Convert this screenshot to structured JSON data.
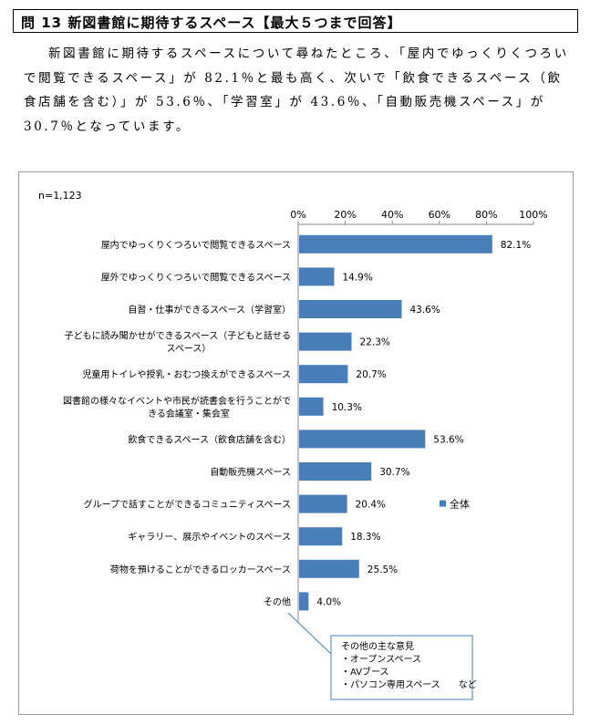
{
  "header": {
    "question_title": "問 13 新図書館に期待するスペース【最大５つまで回答】"
  },
  "intro": {
    "text": "新図書館に期待するスペースについて尋ねたところ、「屋内でゆっくりくつろいで閲覧できるスペース」が 82.1％と最も高く、次いで「飲食できるスペース（飲食店舗を含む）」が 53.6％、「学習室」が 43.6％、「自動販売機スペース」が 30.7％となっています。"
  },
  "colors": {
    "bar": "#4a7ebb",
    "axis": "#888888",
    "callout_border": "#4a7ebb"
  },
  "chart_data": {
    "type": "bar",
    "orientation": "horizontal",
    "sample_note": "n=1,123",
    "xlim": [
      0,
      100
    ],
    "x_ticks": [
      "0%",
      "20%",
      "40%",
      "60%",
      "80%",
      "100%"
    ],
    "categories": [
      [
        "屋内でゆっくりくつろいで閲覧できるスペース"
      ],
      [
        "屋外でゆっくりくつろいで閲覧できるスペース"
      ],
      [
        "自習・仕事ができるスペース（学習室）"
      ],
      [
        "子どもに読み聞かせができるスペース（子どもと話せる",
        "スペース）"
      ],
      [
        "児童用トイレや授乳・おむつ換えができるスペース"
      ],
      [
        "図書館の様々なイベントや市民が読書会を行うことがで",
        "きる会議室・集会室"
      ],
      [
        "飲食できるスペース（飲食店舗を含む）"
      ],
      [
        "自動販売機スペース"
      ],
      [
        "グループで話すことができるコミュニティスペース"
      ],
      [
        "ギャラリー、展示やイベントのスペース"
      ],
      [
        "荷物を預けることができるロッカースペース"
      ],
      [
        "その他"
      ]
    ],
    "series": [
      {
        "name": "全体",
        "values": [
          82.1,
          14.9,
          43.6,
          22.3,
          20.7,
          10.3,
          53.6,
          30.7,
          20.4,
          18.3,
          25.5,
          4.0
        ],
        "labels": [
          "82.1%",
          "14.9%",
          "43.6%",
          "22.3%",
          "20.7%",
          "10.3%",
          "53.6%",
          "30.7%",
          "20.4%",
          "18.3%",
          "25.5%",
          "4.0%"
        ]
      }
    ],
    "legend_position": "right",
    "grid": true,
    "annotation": {
      "title": "その他の主な意見",
      "items": [
        "・オープンスペース",
        "・AVブース",
        "・パソコン専用スペース　　など"
      ]
    }
  }
}
